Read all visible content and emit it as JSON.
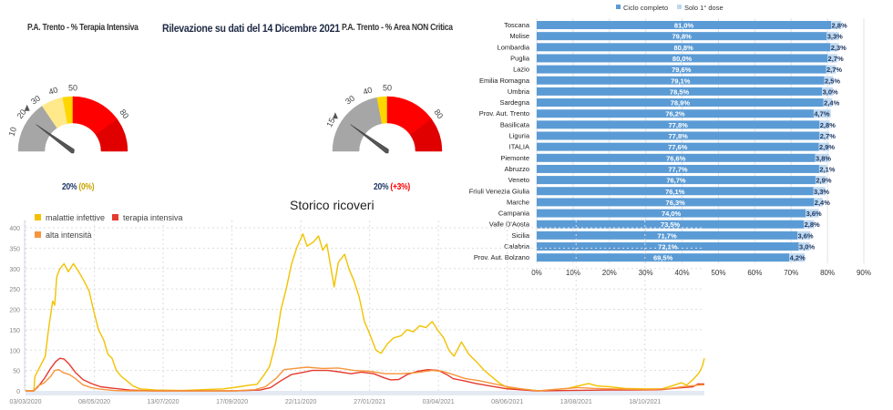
{
  "header": {
    "title": "Rilevazione su dati del 14 Dicembre 2021"
  },
  "gauges": [
    {
      "title": "P.A. Trento - % Terapia Intensiva",
      "value": 20,
      "marker_value": 20,
      "value_label": "20%",
      "delta_label": "(0%)",
      "delta_color": "#c9a400",
      "segments": [
        {
          "from": 0,
          "to": 31,
          "color": "#a6a6a6"
        },
        {
          "from": 31,
          "to": 44,
          "color": "#ffe98a"
        },
        {
          "from": 44,
          "to": 50,
          "color": "#ffd700"
        },
        {
          "from": 50,
          "to": 80,
          "color": "#ff0000"
        },
        {
          "from": 80,
          "to": 100,
          "color": "#e00000"
        }
      ],
      "ticks": [
        {
          "v": 10,
          "label": "10"
        },
        {
          "v": 20,
          "label": "20"
        },
        {
          "v": 30,
          "label": "30"
        },
        {
          "v": 40,
          "label": "40"
        },
        {
          "v": 50,
          "label": "50"
        },
        {
          "v": 80,
          "label": "80"
        }
      ]
    },
    {
      "title": "P.A. Trento - % Area NON Critica",
      "value": 20,
      "marker_value": 15,
      "value_label": "20%",
      "delta_label": "(+3%)",
      "delta_color": "#ff0000",
      "segments": [
        {
          "from": 0,
          "to": 44,
          "color": "#a6a6a6"
        },
        {
          "from": 44,
          "to": 50,
          "color": "#ffd700"
        },
        {
          "from": 50,
          "to": 80,
          "color": "#ff0000"
        },
        {
          "from": 80,
          "to": 100,
          "color": "#e00000"
        }
      ],
      "ticks": [
        {
          "v": 15,
          "label": "15"
        },
        {
          "v": 30,
          "label": "30"
        },
        {
          "v": 40,
          "label": "40"
        },
        {
          "v": 50,
          "label": "50"
        },
        {
          "v": 80,
          "label": "80"
        }
      ]
    }
  ],
  "chart_data": [
    {
      "type": "bar",
      "orientation": "horizontal",
      "stacked": true,
      "legend": [
        "Ciclo completo",
        "Solo 1° dose"
      ],
      "legend_position": "top",
      "colors": [
        "#5b9bd5",
        "#bdd7ee"
      ],
      "categories": [
        "Toscana",
        "Molise",
        "Lombardia",
        "Puglia",
        "Lazio",
        "Emilia Romagna",
        "Umbria",
        "Sardegna",
        "Prov. Aut. Trento",
        "Basilicata",
        "Liguria",
        "ITALIA",
        "Piemonte",
        "Abruzzo",
        "Veneto",
        "Friuli Venezia Giulia",
        "Marche",
        "Campania",
        "Valle D'Aosta",
        "Sicilia",
        "Calabria",
        "Prov. Aut. Bolzano"
      ],
      "series": [
        {
          "name": "Ciclo completo",
          "values": [
            81.0,
            79.8,
            80.8,
            80.0,
            79.6,
            79.1,
            78.5,
            78.9,
            76.2,
            77.8,
            77.8,
            77.6,
            76.6,
            77.7,
            76.7,
            76.1,
            76.3,
            74.0,
            73.5,
            71.7,
            72.1,
            69.5
          ],
          "labels": [
            "81,0%",
            "79,8%",
            "80,8%",
            "80,0%",
            "79,6%",
            "79,1%",
            "78,5%",
            "78,9%",
            "76,2%",
            "77,8%",
            "77,8%",
            "77,6%",
            "76,6%",
            "77,7%",
            "76,7%",
            "76,1%",
            "76,3%",
            "74,0%",
            "73,5%",
            "71,7%",
            "72,1%",
            "69,5%"
          ]
        },
        {
          "name": "Solo 1° dose",
          "values": [
            2.8,
            3.3,
            2.3,
            2.7,
            2.7,
            2.5,
            3.0,
            2.4,
            4.7,
            2.8,
            2.7,
            2.9,
            3.8,
            2.1,
            2.9,
            3.3,
            2.4,
            3.6,
            2.8,
            3.6,
            3.0,
            4.2
          ],
          "labels": [
            "2,8%",
            "3,3%",
            "2,3%",
            "2,7%",
            "2,7%",
            "2,5%",
            "3,0%",
            "2,4%",
            "4,7%",
            "2,8%",
            "2,7%",
            "2,9%",
            "3,8%",
            "2,1%",
            "2,9%",
            "3,3%",
            "2,4%",
            "3,6%",
            "2,8%",
            "3,6%",
            "3,0%",
            "4,2%"
          ]
        }
      ],
      "xlim": [
        0,
        90
      ],
      "xticks": [
        "0%",
        "10%",
        "20%",
        "30%",
        "40%",
        "50%",
        "60%",
        "70%",
        "80%",
        "90%"
      ],
      "grid": true
    },
    {
      "type": "line",
      "title": "Storico ricoveri",
      "x_unit": "days since 03/03/2020",
      "xlim": [
        0,
        651
      ],
      "ylim": [
        0,
        400
      ],
      "yticks": [
        "0",
        "50",
        "100",
        "150",
        "200",
        "250",
        "300",
        "350",
        "400"
      ],
      "xticks": [
        {
          "day": 0,
          "label": "03/03/2020"
        },
        {
          "day": 66,
          "label": "08/05/2020"
        },
        {
          "day": 132,
          "label": "13/07/2020"
        },
        {
          "day": 198,
          "label": "17/09/2020"
        },
        {
          "day": 264,
          "label": "22/11/2020"
        },
        {
          "day": 330,
          "label": "27/01/2021"
        },
        {
          "day": 396,
          "label": "03/04/2021"
        },
        {
          "day": 462,
          "label": "08/06/2021"
        },
        {
          "day": 528,
          "label": "13/08/2021"
        },
        {
          "day": 594,
          "label": "18/10/2021"
        }
      ],
      "legend_position": "top-left",
      "grid": true,
      "series": [
        {
          "name": "malattie infettive",
          "color": "#f2c200",
          "points": [
            [
              0,
              0
            ],
            [
              8,
              0
            ],
            [
              9,
              35
            ],
            [
              14,
              60
            ],
            [
              19,
              85
            ],
            [
              22,
              150
            ],
            [
              26,
              220
            ],
            [
              28,
              210
            ],
            [
              30,
              280
            ],
            [
              33,
              300
            ],
            [
              37,
              312
            ],
            [
              41,
              292
            ],
            [
              46,
              312
            ],
            [
              51,
              292
            ],
            [
              56,
              270
            ],
            [
              61,
              245
            ],
            [
              65,
              200
            ],
            [
              70,
              150
            ],
            [
              75,
              125
            ],
            [
              79,
              90
            ],
            [
              83,
              80
            ],
            [
              87,
              50
            ],
            [
              92,
              35
            ],
            [
              97,
              25
            ],
            [
              103,
              12
            ],
            [
              110,
              5
            ],
            [
              125,
              2
            ],
            [
              150,
              1
            ],
            [
              170,
              3
            ],
            [
              190,
              5
            ],
            [
              205,
              10
            ],
            [
              215,
              14
            ],
            [
              222,
              16
            ],
            [
              229,
              40
            ],
            [
              234,
              60
            ],
            [
              240,
              120
            ],
            [
              245,
              200
            ],
            [
              250,
              250
            ],
            [
              255,
              310
            ],
            [
              260,
              350
            ],
            [
              266,
              385
            ],
            [
              270,
              355
            ],
            [
              276,
              365
            ],
            [
              281,
              380
            ],
            [
              285,
              345
            ],
            [
              289,
              360
            ],
            [
              293,
              300
            ],
            [
              296,
              255
            ],
            [
              300,
              315
            ],
            [
              306,
              335
            ],
            [
              310,
              300
            ],
            [
              315,
              270
            ],
            [
              320,
              230
            ],
            [
              325,
              170
            ],
            [
              330,
              140
            ],
            [
              336,
              100
            ],
            [
              341,
              92
            ],
            [
              347,
              115
            ],
            [
              353,
              130
            ],
            [
              360,
              135
            ],
            [
              366,
              150
            ],
            [
              372,
              145
            ],
            [
              378,
              160
            ],
            [
              384,
              155
            ],
            [
              390,
              170
            ],
            [
              395,
              150
            ],
            [
              401,
              130
            ],
            [
              406,
              100
            ],
            [
              411,
              85
            ],
            [
              418,
              120
            ],
            [
              425,
              90
            ],
            [
              433,
              70
            ],
            [
              440,
              50
            ],
            [
              447,
              35
            ],
            [
              455,
              18
            ],
            [
              462,
              8
            ],
            [
              475,
              5
            ],
            [
              492,
              0
            ],
            [
              505,
              3
            ],
            [
              520,
              6
            ],
            [
              530,
              12
            ],
            [
              540,
              18
            ],
            [
              548,
              12
            ],
            [
              560,
              10
            ],
            [
              575,
              6
            ],
            [
              594,
              5
            ],
            [
              610,
              5
            ],
            [
              620,
              12
            ],
            [
              629,
              20
            ],
            [
              634,
              14
            ],
            [
              641,
              30
            ],
            [
              646,
              45
            ],
            [
              649,
              60
            ],
            [
              651,
              80
            ]
          ]
        },
        {
          "name": "terapia intensiva",
          "color": "#e53a2e",
          "points": [
            [
              0,
              0
            ],
            [
              8,
              0
            ],
            [
              12,
              10
            ],
            [
              18,
              30
            ],
            [
              24,
              55
            ],
            [
              29,
              72
            ],
            [
              33,
              80
            ],
            [
              37,
              78
            ],
            [
              42,
              65
            ],
            [
              48,
              45
            ],
            [
              55,
              28
            ],
            [
              63,
              18
            ],
            [
              72,
              10
            ],
            [
              85,
              6
            ],
            [
              100,
              2
            ],
            [
              120,
              0
            ],
            [
              200,
              0
            ],
            [
              225,
              2
            ],
            [
              235,
              8
            ],
            [
              245,
              25
            ],
            [
              255,
              40
            ],
            [
              265,
              45
            ],
            [
              275,
              50
            ],
            [
              290,
              50
            ],
            [
              300,
              47
            ],
            [
              312,
              42
            ],
            [
              322,
              46
            ],
            [
              334,
              42
            ],
            [
              344,
              32
            ],
            [
              350,
              27
            ],
            [
              358,
              28
            ],
            [
              366,
              40
            ],
            [
              376,
              48
            ],
            [
              386,
              52
            ],
            [
              396,
              50
            ],
            [
              404,
              40
            ],
            [
              410,
              30
            ],
            [
              420,
              25
            ],
            [
              432,
              18
            ],
            [
              445,
              12
            ],
            [
              462,
              5
            ],
            [
              490,
              0
            ],
            [
              520,
              1
            ],
            [
              560,
              2
            ],
            [
              594,
              2
            ],
            [
              610,
              3
            ],
            [
              625,
              7
            ],
            [
              640,
              10
            ],
            [
              645,
              17
            ],
            [
              651,
              17
            ]
          ]
        },
        {
          "name": "alta intensità",
          "color": "#f7953a",
          "points": [
            [
              0,
              0
            ],
            [
              8,
              0
            ],
            [
              12,
              12
            ],
            [
              18,
              20
            ],
            [
              24,
              35
            ],
            [
              28,
              50
            ],
            [
              32,
              52
            ],
            [
              36,
              45
            ],
            [
              42,
              40
            ],
            [
              48,
              30
            ],
            [
              55,
              15
            ],
            [
              63,
              8
            ],
            [
              72,
              4
            ],
            [
              85,
              1
            ],
            [
              100,
              0
            ],
            [
              200,
              0
            ],
            [
              220,
              3
            ],
            [
              230,
              10
            ],
            [
              240,
              30
            ],
            [
              248,
              52
            ],
            [
              258,
              55
            ],
            [
              270,
              58
            ],
            [
              285,
              55
            ],
            [
              300,
              56
            ],
            [
              315,
              50
            ],
            [
              330,
              48
            ],
            [
              345,
              42
            ],
            [
              360,
              42
            ],
            [
              375,
              45
            ],
            [
              390,
              50
            ],
            [
              400,
              48
            ],
            [
              410,
              40
            ],
            [
              422,
              30
            ],
            [
              435,
              25
            ],
            [
              448,
              18
            ],
            [
              462,
              10
            ],
            [
              478,
              4
            ],
            [
              492,
              0
            ],
            [
              510,
              4
            ],
            [
              530,
              8
            ],
            [
              545,
              6
            ],
            [
              560,
              5
            ],
            [
              594,
              3
            ],
            [
              615,
              5
            ],
            [
              630,
              10
            ],
            [
              645,
              14
            ],
            [
              651,
              15
            ]
          ]
        }
      ]
    }
  ]
}
